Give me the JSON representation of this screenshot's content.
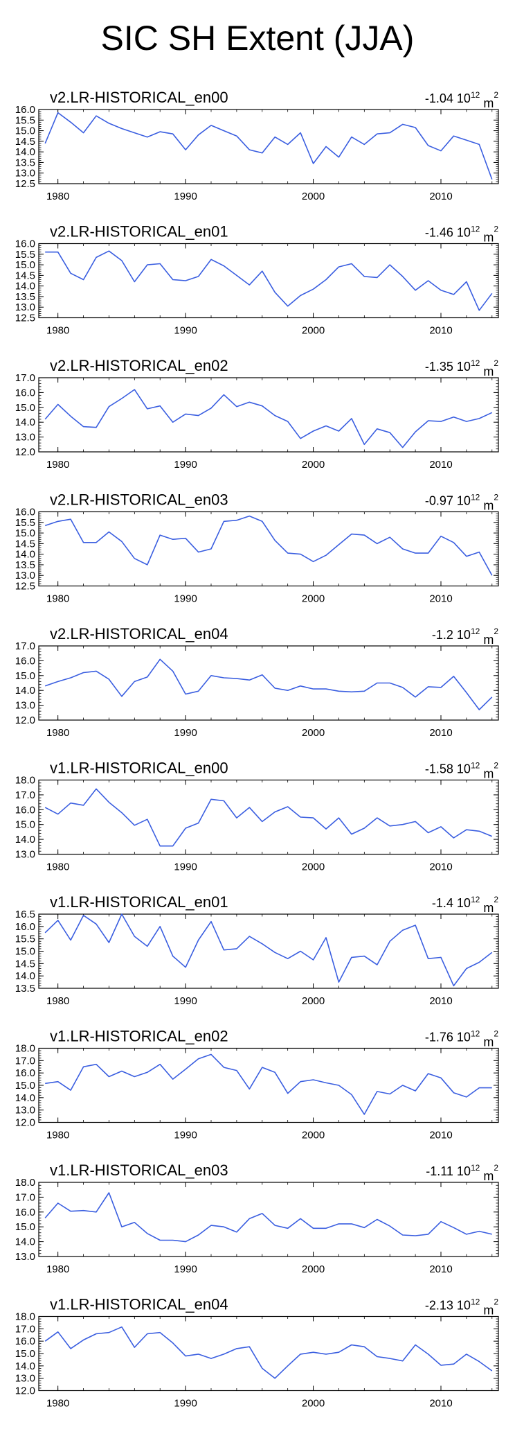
{
  "figure": {
    "title": "SIC SH Extent (JJA)"
  },
  "chart_data": [
    {
      "type": "line",
      "title": "v2.LR-HISTORICAL_en00",
      "trend": {
        "value": "-1.04",
        "base": "10",
        "exp": "12",
        "unit": "m",
        "unit_exp": "2"
      },
      "ylim": [
        12.5,
        16.0
      ],
      "yticks": [
        "12.5",
        "13.0",
        "13.5",
        "14.0",
        "14.5",
        "15.0",
        "15.5",
        "16.0"
      ],
      "xlim": [
        1978.5,
        2014.5
      ],
      "xticks": [
        "1980",
        "1990",
        "2000",
        "2010"
      ],
      "color": "#3a5ee0",
      "x": [
        1979,
        1980,
        1981,
        1982,
        1983,
        1984,
        1985,
        1986,
        1987,
        1988,
        1989,
        1990,
        1991,
        1992,
        1993,
        1994,
        1995,
        1996,
        1997,
        1998,
        1999,
        2000,
        2001,
        2002,
        2003,
        2004,
        2005,
        2006,
        2007,
        2008,
        2009,
        2010,
        2011,
        2012,
        2013,
        2014
      ],
      "values": [
        14.4,
        15.85,
        15.4,
        14.9,
        15.7,
        15.35,
        15.1,
        14.9,
        14.7,
        14.95,
        14.85,
        14.1,
        14.8,
        15.25,
        15.0,
        14.75,
        14.1,
        13.95,
        14.7,
        14.35,
        14.9,
        13.45,
        14.25,
        13.75,
        14.7,
        14.35,
        14.85,
        14.9,
        15.3,
        15.15,
        14.3,
        14.05,
        14.75,
        14.55,
        14.35,
        12.7
      ]
    },
    {
      "type": "line",
      "title": "v2.LR-HISTORICAL_en01",
      "trend": {
        "value": "-1.46",
        "base": "10",
        "exp": "12",
        "unit": "m",
        "unit_exp": "2"
      },
      "ylim": [
        12.5,
        16.0
      ],
      "yticks": [
        "12.5",
        "13.0",
        "13.5",
        "14.0",
        "14.5",
        "15.0",
        "15.5",
        "16.0"
      ],
      "xlim": [
        1978.5,
        2014.5
      ],
      "xticks": [
        "1980",
        "1990",
        "2000",
        "2010"
      ],
      "color": "#3a5ee0",
      "x": [
        1979,
        1980,
        1981,
        1982,
        1983,
        1984,
        1985,
        1986,
        1987,
        1988,
        1989,
        1990,
        1991,
        1992,
        1993,
        1994,
        1995,
        1996,
        1997,
        1998,
        1999,
        2000,
        2001,
        2002,
        2003,
        2004,
        2005,
        2006,
        2007,
        2008,
        2009,
        2010,
        2011,
        2012,
        2013,
        2014
      ],
      "values": [
        15.6,
        15.6,
        14.6,
        14.3,
        15.35,
        15.65,
        15.2,
        14.2,
        15.0,
        15.05,
        14.3,
        14.25,
        14.45,
        15.25,
        14.95,
        14.5,
        14.05,
        14.7,
        13.7,
        13.05,
        13.55,
        13.85,
        14.3,
        14.9,
        15.05,
        14.45,
        14.4,
        15.0,
        14.45,
        13.8,
        14.25,
        13.8,
        13.6,
        14.2,
        12.85,
        13.65
      ]
    },
    {
      "type": "line",
      "title": "v2.LR-HISTORICAL_en02",
      "trend": {
        "value": "-1.35",
        "base": "10",
        "exp": "12",
        "unit": "m",
        "unit_exp": "2"
      },
      "ylim": [
        12.0,
        17.0
      ],
      "yticks": [
        "12.0",
        "13.0",
        "14.0",
        "15.0",
        "16.0",
        "17.0"
      ],
      "xlim": [
        1978.5,
        2014.5
      ],
      "xticks": [
        "1980",
        "1990",
        "2000",
        "2010"
      ],
      "color": "#3a5ee0",
      "x": [
        1979,
        1980,
        1981,
        1982,
        1983,
        1984,
        1985,
        1986,
        1987,
        1988,
        1989,
        1990,
        1991,
        1992,
        1993,
        1994,
        1995,
        1996,
        1997,
        1998,
        1999,
        2000,
        2001,
        2002,
        2003,
        2004,
        2005,
        2006,
        2007,
        2008,
        2009,
        2010,
        2011,
        2012,
        2013,
        2014
      ],
      "values": [
        14.2,
        15.2,
        14.4,
        13.7,
        13.65,
        15.05,
        15.6,
        16.2,
        14.9,
        15.1,
        14.0,
        14.55,
        14.45,
        14.95,
        15.85,
        15.05,
        15.35,
        15.1,
        14.45,
        14.05,
        12.9,
        13.4,
        13.75,
        13.4,
        14.25,
        12.5,
        13.55,
        13.3,
        12.3,
        13.35,
        14.1,
        14.05,
        14.35,
        14.05,
        14.25,
        14.65
      ]
    },
    {
      "type": "line",
      "title": "v2.LR-HISTORICAL_en03",
      "trend": {
        "value": "-0.97",
        "base": "10",
        "exp": "12",
        "unit": "m",
        "unit_exp": "2"
      },
      "ylim": [
        12.5,
        16.0
      ],
      "yticks": [
        "12.5",
        "13.0",
        "13.5",
        "14.0",
        "14.5",
        "15.0",
        "15.5",
        "16.0"
      ],
      "xlim": [
        1978.5,
        2014.5
      ],
      "xticks": [
        "1980",
        "1990",
        "2000",
        "2010"
      ],
      "color": "#3a5ee0",
      "x": [
        1979,
        1980,
        1981,
        1982,
        1983,
        1984,
        1985,
        1986,
        1987,
        1988,
        1989,
        1990,
        1991,
        1992,
        1993,
        1994,
        1995,
        1996,
        1997,
        1998,
        1999,
        2000,
        2001,
        2002,
        2003,
        2004,
        2005,
        2006,
        2007,
        2008,
        2009,
        2010,
        2011,
        2012,
        2013,
        2014
      ],
      "values": [
        15.35,
        15.55,
        15.65,
        14.55,
        14.55,
        15.05,
        14.6,
        13.8,
        13.5,
        14.9,
        14.7,
        14.75,
        14.1,
        14.25,
        15.55,
        15.6,
        15.8,
        15.55,
        14.65,
        14.05,
        14.0,
        13.65,
        13.95,
        14.45,
        14.95,
        14.9,
        14.5,
        14.8,
        14.25,
        14.05,
        14.05,
        14.85,
        14.55,
        13.9,
        14.1,
        13.0
      ]
    },
    {
      "type": "line",
      "title": "v2.LR-HISTORICAL_en04",
      "trend": {
        "value": "-1.2",
        "base": "10",
        "exp": "12",
        "unit": "m",
        "unit_exp": "2"
      },
      "ylim": [
        12.0,
        17.0
      ],
      "yticks": [
        "12.0",
        "13.0",
        "14.0",
        "15.0",
        "16.0",
        "17.0"
      ],
      "xlim": [
        1978.5,
        2014.5
      ],
      "xticks": [
        "1980",
        "1990",
        "2000",
        "2010"
      ],
      "color": "#3a5ee0",
      "x": [
        1979,
        1980,
        1981,
        1982,
        1983,
        1984,
        1985,
        1986,
        1987,
        1988,
        1989,
        1990,
        1991,
        1992,
        1993,
        1994,
        1995,
        1996,
        1997,
        1998,
        1999,
        2000,
        2001,
        2002,
        2003,
        2004,
        2005,
        2006,
        2007,
        2008,
        2009,
        2010,
        2011,
        2012,
        2013,
        2014
      ],
      "values": [
        14.3,
        14.6,
        14.85,
        15.2,
        15.3,
        14.75,
        13.6,
        14.6,
        14.9,
        16.1,
        15.3,
        13.75,
        13.95,
        15.0,
        14.85,
        14.8,
        14.7,
        15.05,
        14.15,
        14.0,
        14.3,
        14.1,
        14.1,
        13.95,
        13.9,
        13.95,
        14.5,
        14.5,
        14.2,
        13.55,
        14.25,
        14.2,
        14.95,
        13.85,
        12.7,
        13.55
      ]
    },
    {
      "type": "line",
      "title": "v1.LR-HISTORICAL_en00",
      "trend": {
        "value": "-1.58",
        "base": "10",
        "exp": "12",
        "unit": "m",
        "unit_exp": "2"
      },
      "ylim": [
        13.0,
        18.0
      ],
      "yticks": [
        "13.0",
        "14.0",
        "15.0",
        "16.0",
        "17.0",
        "18.0"
      ],
      "xlim": [
        1978.5,
        2014.5
      ],
      "xticks": [
        "1980",
        "1990",
        "2000",
        "2010"
      ],
      "color": "#3a5ee0",
      "x": [
        1979,
        1980,
        1981,
        1982,
        1983,
        1984,
        1985,
        1986,
        1987,
        1988,
        1989,
        1990,
        1991,
        1992,
        1993,
        1994,
        1995,
        1996,
        1997,
        1998,
        1999,
        2000,
        2001,
        2002,
        2003,
        2004,
        2005,
        2006,
        2007,
        2008,
        2009,
        2010,
        2011,
        2012,
        2013,
        2014
      ],
      "values": [
        16.15,
        15.7,
        16.45,
        16.3,
        17.4,
        16.5,
        15.8,
        14.95,
        15.35,
        13.55,
        13.55,
        14.75,
        15.1,
        16.7,
        16.6,
        15.45,
        16.15,
        15.2,
        15.85,
        16.2,
        15.5,
        15.45,
        14.7,
        15.45,
        14.35,
        14.75,
        15.45,
        14.9,
        15.0,
        15.2,
        14.45,
        14.85,
        14.1,
        14.65,
        14.55,
        14.2
      ]
    },
    {
      "type": "line",
      "title": "v1.LR-HISTORICAL_en01",
      "trend": {
        "value": "-1.4",
        "base": "10",
        "exp": "12",
        "unit": "m",
        "unit_exp": "2"
      },
      "ylim": [
        13.5,
        16.5
      ],
      "yticks": [
        "13.5",
        "14.0",
        "14.5",
        "15.0",
        "15.5",
        "16.0",
        "16.5"
      ],
      "xlim": [
        1978.5,
        2014.5
      ],
      "xticks": [
        "1980",
        "1990",
        "2000",
        "2010"
      ],
      "color": "#3a5ee0",
      "x": [
        1979,
        1980,
        1981,
        1982,
        1983,
        1984,
        1985,
        1986,
        1987,
        1988,
        1989,
        1990,
        1991,
        1992,
        1993,
        1994,
        1995,
        1996,
        1997,
        1998,
        1999,
        2000,
        2001,
        2002,
        2003,
        2004,
        2005,
        2006,
        2007,
        2008,
        2009,
        2010,
        2011,
        2012,
        2013,
        2014
      ],
      "values": [
        15.75,
        16.25,
        15.45,
        16.45,
        16.1,
        15.35,
        16.5,
        15.6,
        15.2,
        16.0,
        14.8,
        14.35,
        15.45,
        16.2,
        15.05,
        15.1,
        15.6,
        15.3,
        14.95,
        14.7,
        15.0,
        14.65,
        15.55,
        13.75,
        14.75,
        14.8,
        14.45,
        15.4,
        15.85,
        16.05,
        14.7,
        14.75,
        13.6,
        14.3,
        14.55,
        14.95
      ]
    },
    {
      "type": "line",
      "title": "v1.LR-HISTORICAL_en02",
      "trend": {
        "value": "-1.76",
        "base": "10",
        "exp": "12",
        "unit": "m",
        "unit_exp": "2"
      },
      "ylim": [
        12.0,
        18.0
      ],
      "yticks": [
        "12.0",
        "13.0",
        "14.0",
        "15.0",
        "16.0",
        "17.0",
        "18.0"
      ],
      "xlim": [
        1978.5,
        2014.5
      ],
      "xticks": [
        "1980",
        "1990",
        "2000",
        "2010"
      ],
      "color": "#3a5ee0",
      "x": [
        1979,
        1980,
        1981,
        1982,
        1983,
        1984,
        1985,
        1986,
        1987,
        1988,
        1989,
        1990,
        1991,
        1992,
        1993,
        1994,
        1995,
        1996,
        1997,
        1998,
        1999,
        2000,
        2001,
        2002,
        2003,
        2004,
        2005,
        2006,
        2007,
        2008,
        2009,
        2010,
        2011,
        2012,
        2013,
        2014
      ],
      "values": [
        15.15,
        15.3,
        14.6,
        16.5,
        16.7,
        15.7,
        16.15,
        15.7,
        16.05,
        16.7,
        15.5,
        16.3,
        17.15,
        17.5,
        16.45,
        16.2,
        14.7,
        16.45,
        16.05,
        14.35,
        15.3,
        15.45,
        15.2,
        15.0,
        14.25,
        12.65,
        14.5,
        14.3,
        15.0,
        14.55,
        15.95,
        15.6,
        14.4,
        14.05,
        14.8,
        14.8
      ]
    },
    {
      "type": "line",
      "title": "v1.LR-HISTORICAL_en03",
      "trend": {
        "value": "-1.11",
        "base": "10",
        "exp": "12",
        "unit": "m",
        "unit_exp": "2"
      },
      "ylim": [
        13.0,
        18.0
      ],
      "yticks": [
        "13.0",
        "14.0",
        "15.0",
        "16.0",
        "17.0",
        "18.0"
      ],
      "xlim": [
        1978.5,
        2014.5
      ],
      "xticks": [
        "1980",
        "1990",
        "2000",
        "2010"
      ],
      "color": "#3a5ee0",
      "x": [
        1979,
        1980,
        1981,
        1982,
        1983,
        1984,
        1985,
        1986,
        1987,
        1988,
        1989,
        1990,
        1991,
        1992,
        1993,
        1994,
        1995,
        1996,
        1997,
        1998,
        1999,
        2000,
        2001,
        2002,
        2003,
        2004,
        2005,
        2006,
        2007,
        2008,
        2009,
        2010,
        2011,
        2012,
        2013,
        2014
      ],
      "values": [
        15.6,
        16.6,
        16.05,
        16.1,
        16.0,
        17.3,
        15.0,
        15.3,
        14.55,
        14.1,
        14.1,
        14.0,
        14.45,
        15.1,
        15.0,
        14.65,
        15.55,
        15.9,
        15.1,
        14.9,
        15.55,
        14.9,
        14.9,
        15.2,
        15.2,
        14.95,
        15.5,
        15.05,
        14.45,
        14.4,
        14.5,
        15.35,
        14.95,
        14.5,
        14.7,
        14.5
      ]
    },
    {
      "type": "line",
      "title": "v1.LR-HISTORICAL_en04",
      "trend": {
        "value": "-2.13",
        "base": "10",
        "exp": "12",
        "unit": "m",
        "unit_exp": "2"
      },
      "ylim": [
        12.0,
        18.0
      ],
      "yticks": [
        "12.0",
        "13.0",
        "14.0",
        "15.0",
        "16.0",
        "17.0",
        "18.0"
      ],
      "xlim": [
        1978.5,
        2014.5
      ],
      "xticks": [
        "1980",
        "1990",
        "2000",
        "2010"
      ],
      "color": "#3a5ee0",
      "x": [
        1979,
        1980,
        1981,
        1982,
        1983,
        1984,
        1985,
        1986,
        1987,
        1988,
        1989,
        1990,
        1991,
        1992,
        1993,
        1994,
        1995,
        1996,
        1997,
        1998,
        1999,
        2000,
        2001,
        2002,
        2003,
        2004,
        2005,
        2006,
        2007,
        2008,
        2009,
        2010,
        2011,
        2012,
        2013,
        2014
      ],
      "values": [
        16.0,
        16.75,
        15.4,
        16.1,
        16.6,
        16.7,
        17.15,
        15.5,
        16.6,
        16.7,
        15.85,
        14.8,
        14.95,
        14.6,
        14.95,
        15.4,
        15.55,
        13.8,
        13.0,
        14.0,
        14.95,
        15.1,
        14.95,
        15.1,
        15.7,
        15.55,
        14.75,
        14.6,
        14.4,
        15.7,
        14.95,
        14.05,
        14.15,
        14.95,
        14.35,
        13.6
      ]
    }
  ]
}
